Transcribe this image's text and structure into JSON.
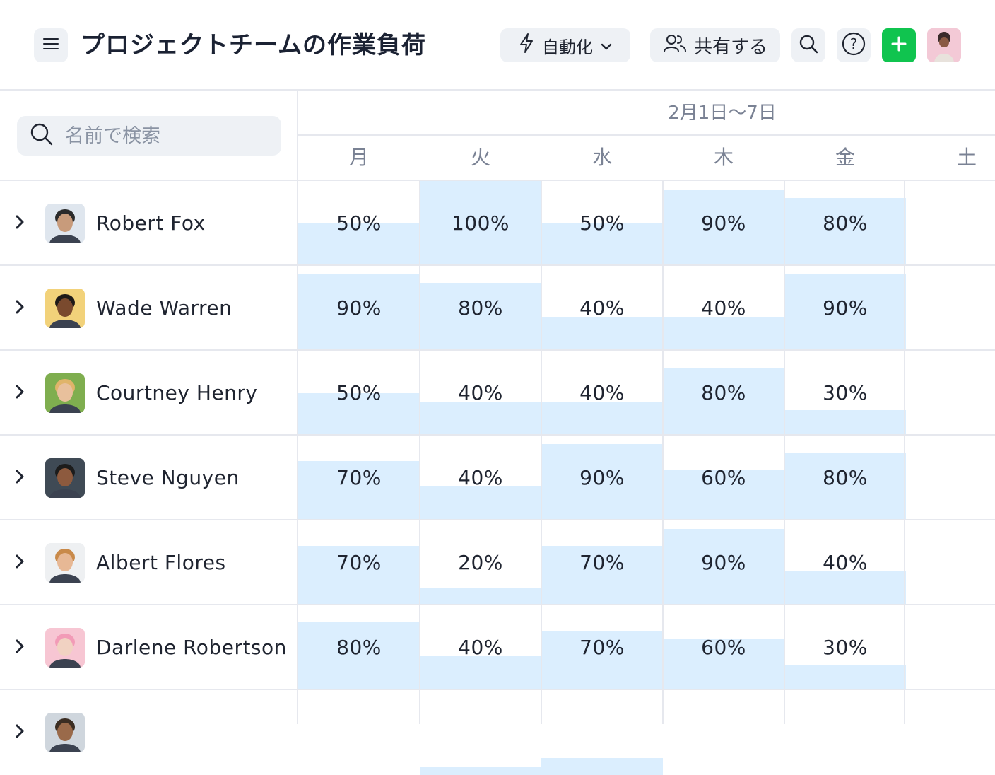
{
  "header": {
    "title": "プロジェクトチームの作業負荷",
    "automation_label": "自動化",
    "share_label": "共有する"
  },
  "search": {
    "placeholder": "名前で検索"
  },
  "calendar": {
    "date_range": "2月1日〜7日",
    "days": [
      "月",
      "火",
      "水",
      "木",
      "金",
      "土"
    ]
  },
  "colors": {
    "accent_green": "#10c44f",
    "load_fill": "#dbeefe",
    "grid": "#e6e8ee",
    "muted_text": "#7a8294"
  },
  "people": [
    {
      "name": "Robert Fox",
      "avatar": "person-photo",
      "loads": [
        0.5,
        1.0,
        0.5,
        0.9,
        0.8
      ],
      "labels": [
        "50%",
        "100%",
        "50%",
        "90%",
        "80%"
      ]
    },
    {
      "name": "Wade Warren",
      "avatar": "person-photo",
      "loads": [
        0.9,
        0.8,
        0.4,
        0.4,
        0.9
      ],
      "labels": [
        "90%",
        "80%",
        "40%",
        "40%",
        "90%"
      ]
    },
    {
      "name": "Courtney Henry",
      "avatar": "person-photo",
      "loads": [
        0.5,
        0.4,
        0.4,
        0.8,
        0.3
      ],
      "labels": [
        "50%",
        "40%",
        "40%",
        "80%",
        "30%"
      ]
    },
    {
      "name": "Steve Nguyen",
      "avatar": "person-photo",
      "loads": [
        0.7,
        0.4,
        0.9,
        0.6,
        0.8
      ],
      "labels": [
        "70%",
        "40%",
        "90%",
        "60%",
        "80%"
      ]
    },
    {
      "name": "Albert Flores",
      "avatar": "person-photo",
      "loads": [
        0.7,
        0.2,
        0.7,
        0.9,
        0.4
      ],
      "labels": [
        "70%",
        "20%",
        "70%",
        "90%",
        "40%"
      ]
    },
    {
      "name": "Darlene Robertson",
      "avatar": "person-photo",
      "loads": [
        0.8,
        0.4,
        0.7,
        0.6,
        0.3
      ],
      "labels": [
        "80%",
        "40%",
        "70%",
        "60%",
        "30%"
      ]
    },
    {
      "name": "",
      "avatar": "person-photo",
      "loads": [
        0.0,
        0.1,
        0.2,
        0.0,
        0.0
      ],
      "labels": [
        "",
        "",
        "",
        "",
        ""
      ]
    }
  ]
}
